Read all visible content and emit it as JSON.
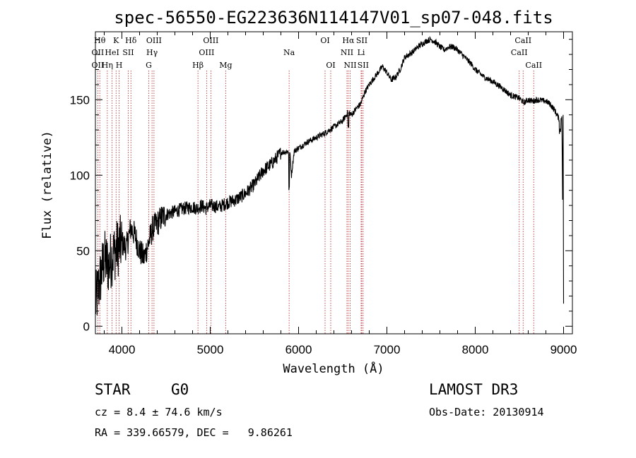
{
  "chart_data": {
    "type": "line",
    "title": "spec-56550-EG223636N114147V01_sp07-048.fits",
    "xlabel": "Wavelength (Å)",
    "ylabel": "Flux (relative)",
    "xlim": [
      3700,
      9100
    ],
    "ylim": [
      -5,
      195
    ],
    "xticks": [
      4000,
      5000,
      6000,
      7000,
      8000,
      9000
    ],
    "yticks": [
      0,
      50,
      100,
      150
    ],
    "grid": false,
    "series": [
      {
        "color": "#000000",
        "x": [
          3700,
          3750,
          3800,
          3850,
          3900,
          3950,
          4000,
          4050,
          4100,
          4150,
          4200,
          4250,
          4300,
          4350,
          4400,
          4450,
          4500,
          4600,
          4700,
          4800,
          4850,
          4900,
          4950,
          5000,
          5100,
          5200,
          5300,
          5400,
          5500,
          5600,
          5700,
          5800,
          5900,
          5920,
          5950,
          6000,
          6100,
          6200,
          6300,
          6400,
          6500,
          6560,
          6600,
          6650,
          6700,
          6750,
          6800,
          6900,
          6950,
          7000,
          7050,
          7100,
          7150,
          7200,
          7250,
          7300,
          7350,
          7400,
          7450,
          7500,
          7550,
          7600,
          7650,
          7700,
          7750,
          7800,
          7850,
          7900,
          7950,
          8000,
          8100,
          8200,
          8300,
          8400,
          8500,
          8550,
          8600,
          8650,
          8700,
          8800,
          8850,
          8900,
          8950,
          8980,
          9000
        ],
        "y": [
          15,
          30,
          45,
          40,
          48,
          52,
          55,
          52,
          65,
          60,
          50,
          45,
          55,
          65,
          68,
          72,
          74,
          76,
          78,
          79,
          78,
          80,
          78,
          80,
          79,
          82,
          84,
          88,
          94,
          103,
          108,
          115,
          116,
          100,
          116,
          118,
          122,
          125,
          128,
          132,
          136,
          142,
          140,
          144,
          147,
          155,
          160,
          168,
          172,
          168,
          163,
          165,
          170,
          178,
          180,
          182,
          185,
          187,
          189,
          190,
          188,
          185,
          183,
          185,
          185,
          183,
          180,
          177,
          174,
          170,
          165,
          162,
          158,
          153,
          151,
          148,
          150,
          149,
          150,
          149,
          147,
          143,
          137,
          139,
          15
        ]
      }
    ],
    "annotations": [
      {
        "x": 3750,
        "label": "Hθ",
        "row": 0
      },
      {
        "x": 3727,
        "label": "OII",
        "row": 1
      },
      {
        "x": 3727,
        "label": "OII",
        "row": 2
      },
      {
        "x": 3889,
        "label": "HeI",
        "row": 1
      },
      {
        "x": 3835,
        "label": "Hη",
        "row": 2
      },
      {
        "x": 3934,
        "label": "K",
        "row": 0
      },
      {
        "x": 3968,
        "label": "H",
        "row": 2
      },
      {
        "x": 4072,
        "label": "SII",
        "row": 1
      },
      {
        "x": 4102,
        "label": "Hδ",
        "row": 0
      },
      {
        "x": 4363,
        "label": "OIII",
        "row": 0
      },
      {
        "x": 4341,
        "label": "Hγ",
        "row": 1
      },
      {
        "x": 4304,
        "label": "G",
        "row": 2
      },
      {
        "x": 4861,
        "label": "Hβ",
        "row": 2
      },
      {
        "x": 5007,
        "label": "OIII",
        "row": 0
      },
      {
        "x": 4959,
        "label": "OIII",
        "row": 1
      },
      {
        "x": 5175,
        "label": "Mg",
        "row": 2
      },
      {
        "x": 5893,
        "label": "Na",
        "row": 1
      },
      {
        "x": 6300,
        "label": "OI",
        "row": 0
      },
      {
        "x": 6364,
        "label": "OI",
        "row": 2
      },
      {
        "x": 6563,
        "label": "Hα",
        "row": 0
      },
      {
        "x": 6548,
        "label": "NII",
        "row": 1
      },
      {
        "x": 6584,
        "label": "NII",
        "row": 2
      },
      {
        "x": 6716,
        "label": "SII",
        "row": 0
      },
      {
        "x": 6708,
        "label": "Li",
        "row": 1
      },
      {
        "x": 6731,
        "label": "SII",
        "row": 2
      },
      {
        "x": 8542,
        "label": "CaII",
        "row": 0
      },
      {
        "x": 8498,
        "label": "CaII",
        "row": 1
      },
      {
        "x": 8662,
        "label": "CaII",
        "row": 2
      }
    ]
  },
  "info": {
    "object_class": "STAR",
    "subclass": "G0",
    "redshift": "cz = 8.4 ± 74.6 km/s",
    "coords": "RA = 339.66579, DEC =   9.86261",
    "survey": "LAMOST DR3",
    "obs_date": "Obs-Date: 20130914"
  }
}
